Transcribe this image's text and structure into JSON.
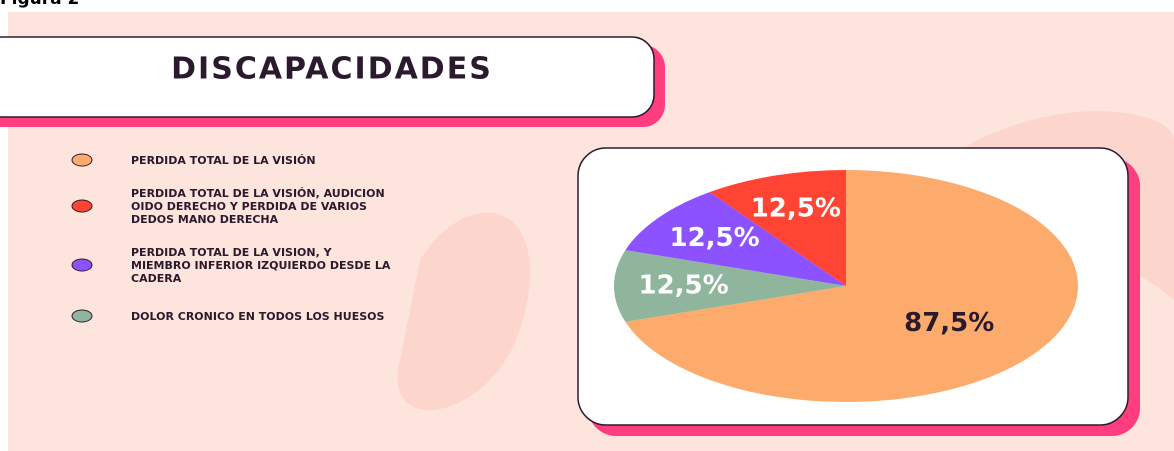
{
  "figure_label": "Figura 2",
  "chart_data": {
    "type": "pie",
    "title": "DISCAPACIDADES",
    "categories": [
      "PERDIDA TOTAL DE LA VISIÓN",
      "PERDIDA TOTAL DE LA VISIÓN, AUDICION OIDO DERECHO Y PERDIDA DE VARIOS DEDOS MANO DERECHA",
      "PERDIDA TOTAL DE LA VISION, Y MIEMBRO INFERIOR IZQUIERDO DESDE LA CADERA",
      "DOLOR CRONICO EN TODOS LOS HUESOS"
    ],
    "values": [
      87.5,
      12.5,
      12.5,
      12.5
    ],
    "value_labels": [
      "87,5%",
      "12,5%",
      "12,5%",
      "12,5%"
    ],
    "colors": [
      "#fdab6d",
      "#ff4433",
      "#8c52ff",
      "#8fb59c"
    ]
  }
}
